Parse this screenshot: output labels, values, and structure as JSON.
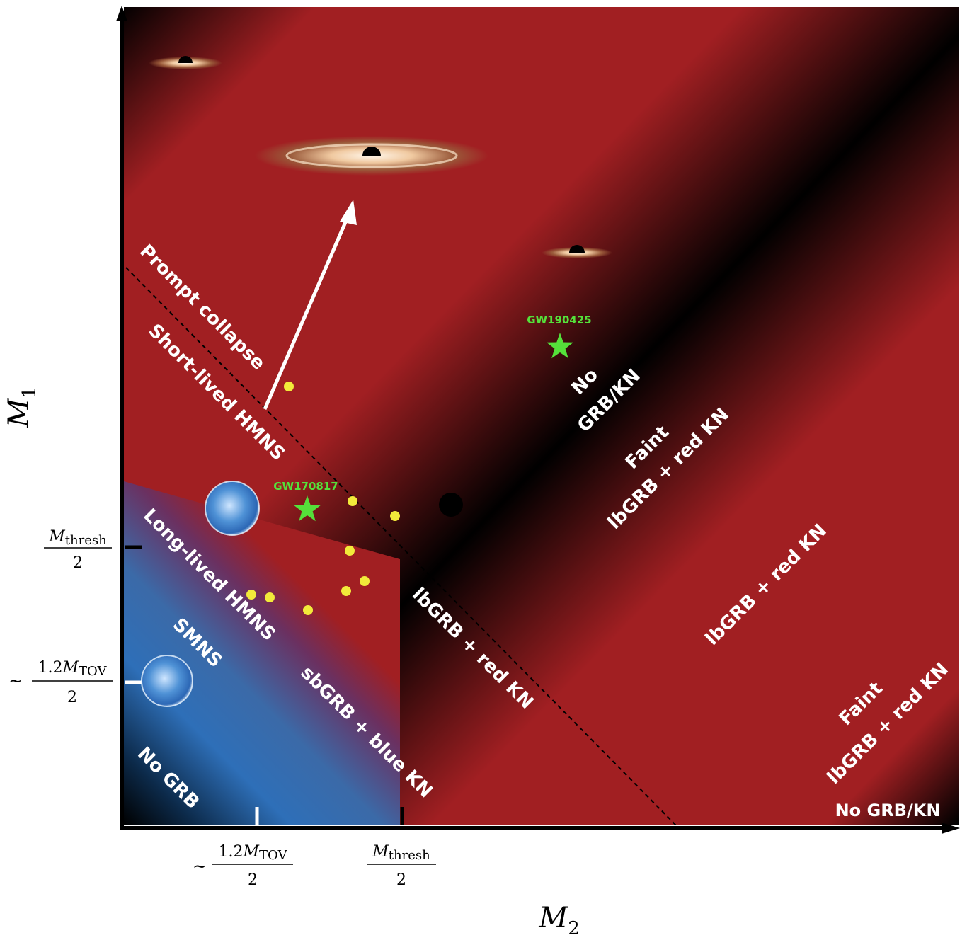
{
  "axes": {
    "x_label": "M",
    "x_sub": "2",
    "y_label": "M",
    "y_sub": "1"
  },
  "ticks": {
    "x": [
      {
        "prefix": "~",
        "num_coef": "1.2",
        "num_var": "M",
        "num_sub": "TOV",
        "den": "2"
      },
      {
        "prefix": "",
        "num_coef": "",
        "num_var": "M",
        "num_sub": "thresh",
        "den": "2"
      }
    ],
    "y": [
      {
        "prefix": "",
        "num_coef": "",
        "num_var": "M",
        "num_sub": "thresh",
        "den": "2"
      },
      {
        "prefix": "~",
        "num_coef": "1.2",
        "num_var": "M",
        "num_sub": "TOV",
        "den": "2"
      }
    ]
  },
  "regions": {
    "prompt_collapse": "Prompt collapse",
    "short_lived": "Short-lived HMNS",
    "long_lived": "Long-lived HMNS",
    "smns": "SMNS",
    "no_grb": "No GRB",
    "sbgrb_blue": "sbGRB + blue KN",
    "lbgrb_red": "lbGRB + red KN",
    "lbgrb_red_right": "lbGRB + red KN",
    "faint_mid": [
      "Faint",
      "lbGRB + red KN"
    ],
    "no_grbkn_mid": [
      "No",
      "GRB/KN"
    ],
    "faint_corner": [
      "Faint",
      "lbGRB + red KN"
    ],
    "no_grbkn_corner": "No GRB/KN"
  },
  "events": {
    "gw170817": "GW170817",
    "gw190425": "GW190425"
  },
  "colors": {
    "red": "#a11f22",
    "blue": "#2e6fb8",
    "black": "#000000",
    "event_green": "#55e03a",
    "dot_yellow": "#f2ea3a"
  }
}
